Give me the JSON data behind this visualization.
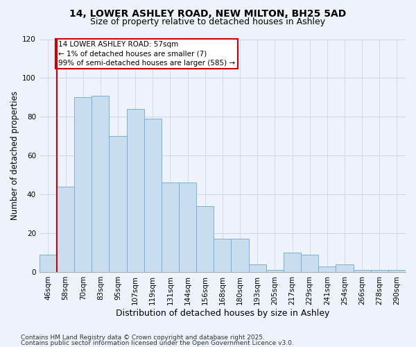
{
  "title_line1": "14, LOWER ASHLEY ROAD, NEW MILTON, BH25 5AD",
  "title_line2": "Size of property relative to detached houses in Ashley",
  "xlabel": "Distribution of detached houses by size in Ashley",
  "ylabel": "Number of detached properties",
  "categories": [
    "46sqm",
    "58sqm",
    "70sqm",
    "83sqm",
    "95sqm",
    "107sqm",
    "119sqm",
    "131sqm",
    "144sqm",
    "156sqm",
    "168sqm",
    "180sqm",
    "193sqm",
    "205sqm",
    "217sqm",
    "229sqm",
    "241sqm",
    "254sqm",
    "266sqm",
    "278sqm",
    "290sqm"
  ],
  "values": [
    9,
    44,
    90,
    91,
    70,
    84,
    79,
    46,
    46,
    34,
    17,
    17,
    4,
    1,
    10,
    9,
    3,
    4,
    1,
    1,
    1
  ],
  "bar_color": "#c8ddf0",
  "bar_edge_color": "#7aafd4",
  "highlight_color": "#cc0000",
  "ylim": [
    0,
    120
  ],
  "yticks": [
    0,
    20,
    40,
    60,
    80,
    100,
    120
  ],
  "annotation_line1": "14 LOWER ASHLEY ROAD: 57sqm",
  "annotation_line2": "← 1% of detached houses are smaller (7)",
  "annotation_line3": "99% of semi-detached houses are larger (585) →",
  "annotation_box_color": "#ffffff",
  "annotation_box_edge": "#cc0000",
  "footer_line1": "Contains HM Land Registry data © Crown copyright and database right 2025.",
  "footer_line2": "Contains public sector information licensed under the Open Government Licence v3.0.",
  "bg_color": "#eef2fa",
  "grid_color": "#c8d0dc",
  "title_fontsize": 10,
  "subtitle_fontsize": 9,
  "ylabel_fontsize": 8.5,
  "xlabel_fontsize": 9,
  "tick_fontsize": 7.5,
  "annotation_fontsize": 7.5,
  "footer_fontsize": 6.5
}
